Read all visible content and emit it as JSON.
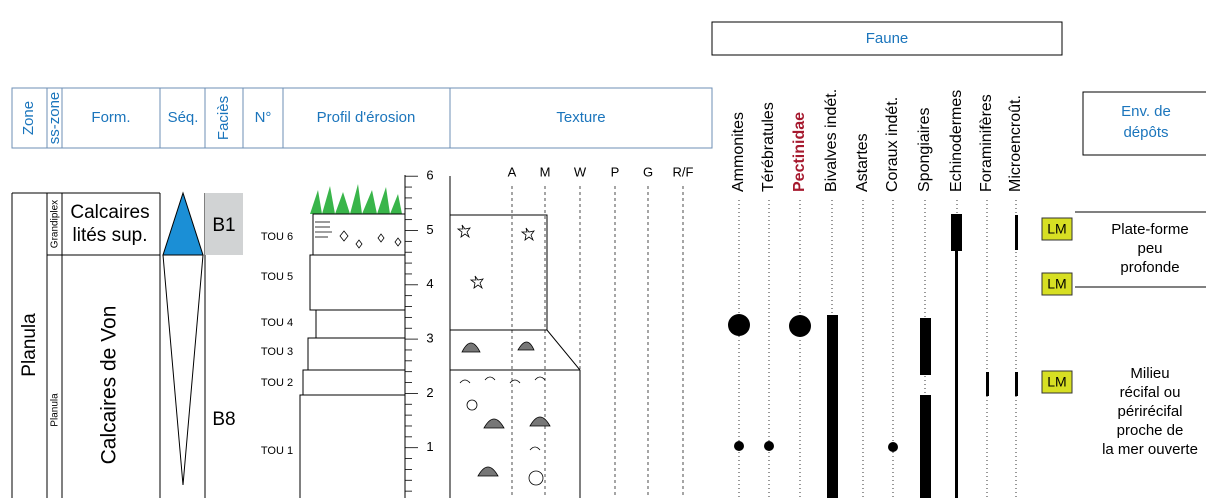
{
  "header": {
    "columns": [
      "Zone",
      "ss-zone",
      "Form.",
      "Séq.",
      "Faciès",
      "N°",
      "Profil d'érosion",
      "Texture"
    ],
    "faune_title": "Faune",
    "faune": [
      "Ammonites",
      "Térébratules",
      "Pectinidae",
      "Bivalves indét.",
      "Astartes",
      "Coraux indét.",
      "Spongiaires",
      "Echinodermes",
      "Foraminifères",
      "Microencroût."
    ],
    "env_title": [
      "Env. de",
      "dépôts"
    ]
  },
  "zone": "Planula",
  "ss_zones": [
    "Grandiplex",
    "Planula"
  ],
  "formations": [
    [
      "Calcaires",
      "lités sup."
    ],
    "Calcaires de Von"
  ],
  "facies": [
    "B1",
    "B8"
  ],
  "beds": [
    "TOU 6",
    "TOU 5",
    "TOU 4",
    "TOU 3",
    "TOU 2",
    "TOU 1"
  ],
  "scale": [
    1,
    2,
    3,
    4,
    5,
    6
  ],
  "texture_classes": [
    "A",
    "M",
    "W",
    "P",
    "G",
    "R/F"
  ],
  "lm_labels": [
    "LM",
    "LM",
    "LM"
  ],
  "environments": [
    [
      "Plate-forme",
      "peu",
      "profonde"
    ],
    [
      "Milieu",
      "récifal ou",
      "périrécifal",
      "proche de",
      "la mer ouverte"
    ]
  ]
}
